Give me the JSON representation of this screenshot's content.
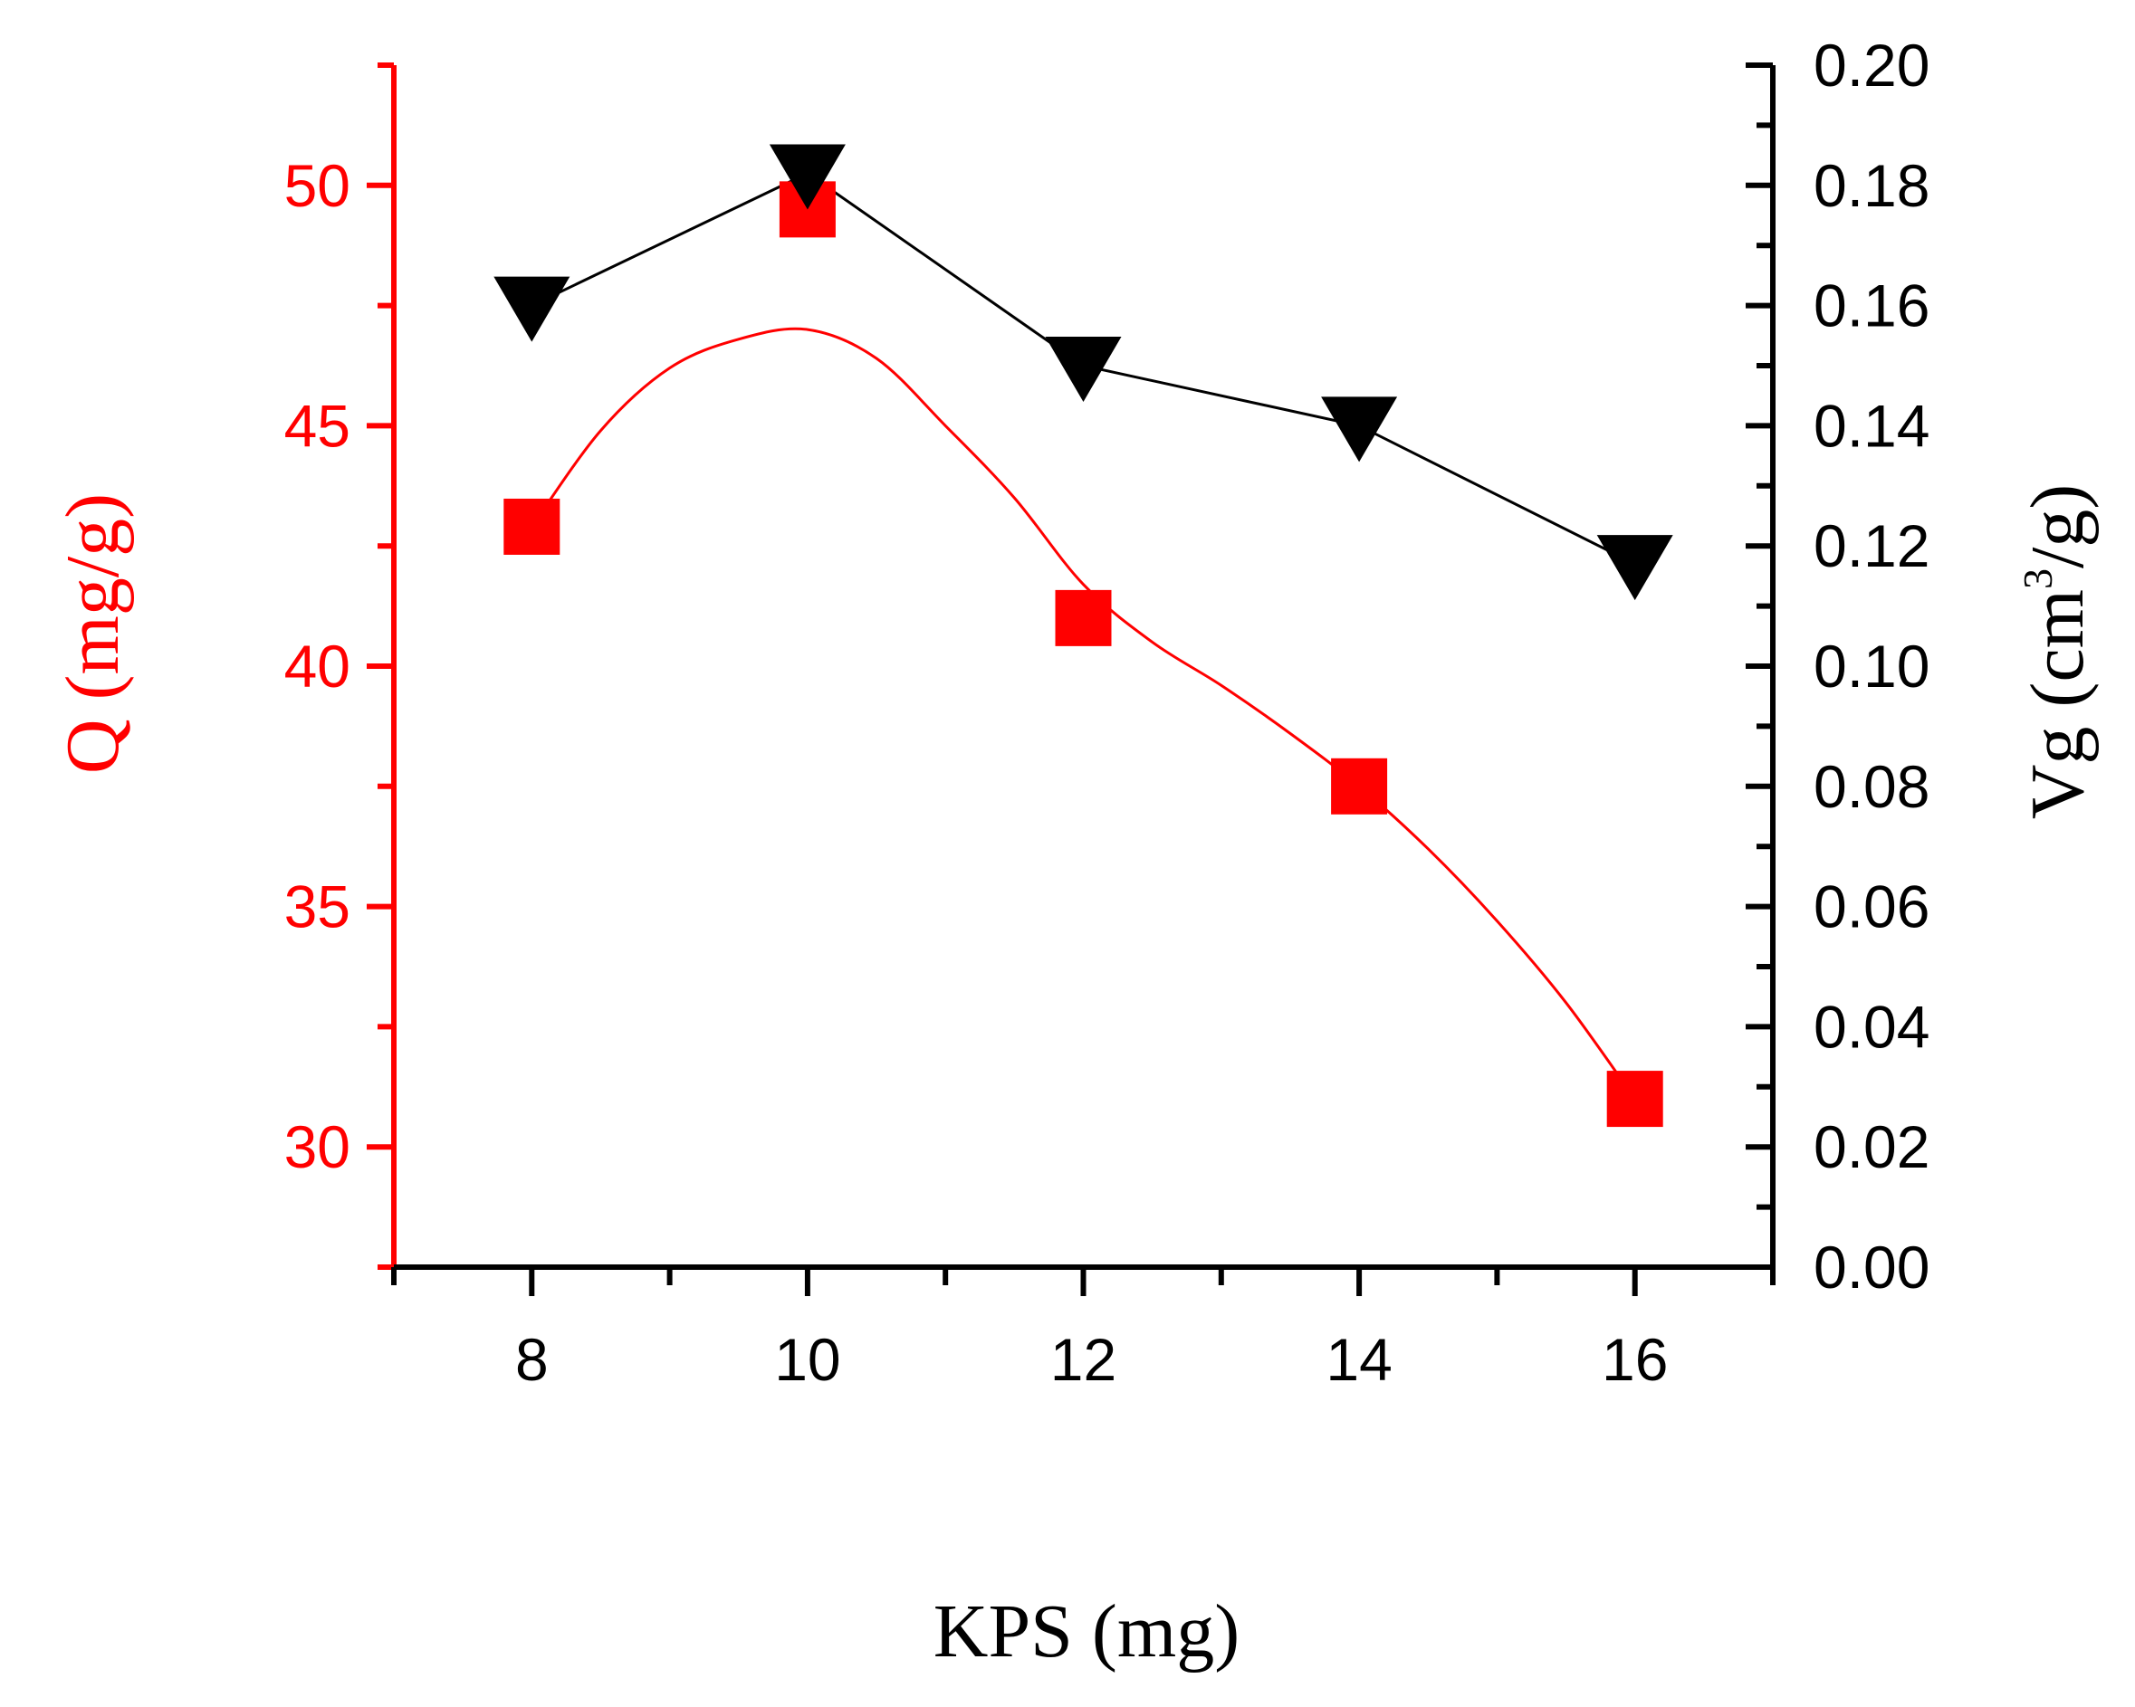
{
  "chart_data": {
    "type": "line",
    "x": [
      8,
      10,
      12,
      14,
      16
    ],
    "xlabel": "KPS (mg)",
    "xlim": [
      7,
      17
    ],
    "x_ticks": [
      "8",
      "10",
      "12",
      "14",
      "16"
    ],
    "series": [
      {
        "name": "Q",
        "axis": "left",
        "marker": "square",
        "color": "#ff0000",
        "values": [
          42.9,
          49.5,
          41.0,
          37.5,
          31.0
        ],
        "smooth": true,
        "fit_curve": {
          "x": [
            8.0,
            8.5,
            9.0,
            9.5,
            10.0,
            10.5,
            11.0,
            11.5,
            12.0,
            12.5,
            13.0,
            13.5,
            14.0,
            14.5,
            15.0,
            15.5,
            16.0
          ],
          "y": [
            42.9,
            44.9,
            46.2,
            46.8,
            47.0,
            46.4,
            45.0,
            43.5,
            41.7,
            40.5,
            39.6,
            38.6,
            37.5,
            36.2,
            34.7,
            33.0,
            31.0
          ]
        }
      },
      {
        "name": "Vg",
        "axis": "right",
        "marker": "triangle-down",
        "color": "#000000",
        "values": [
          0.16,
          0.182,
          0.15,
          0.14,
          0.117
        ]
      }
    ],
    "y_left": {
      "label_main": "Q (mg/g)",
      "ylim": [
        27.5,
        52.5
      ],
      "ticks": [
        "30",
        "35",
        "40",
        "45",
        "50"
      ],
      "color": "#ff0000"
    },
    "y_right": {
      "label_main": "Vg (cm",
      "label_sup": "3",
      "label_end": "/g)",
      "ylim": [
        0.0,
        0.2
      ],
      "ticks": [
        "0.00",
        "0.02",
        "0.04",
        "0.06",
        "0.08",
        "0.10",
        "0.12",
        "0.14",
        "0.16",
        "0.18",
        "0.20"
      ],
      "color": "#000000"
    }
  }
}
